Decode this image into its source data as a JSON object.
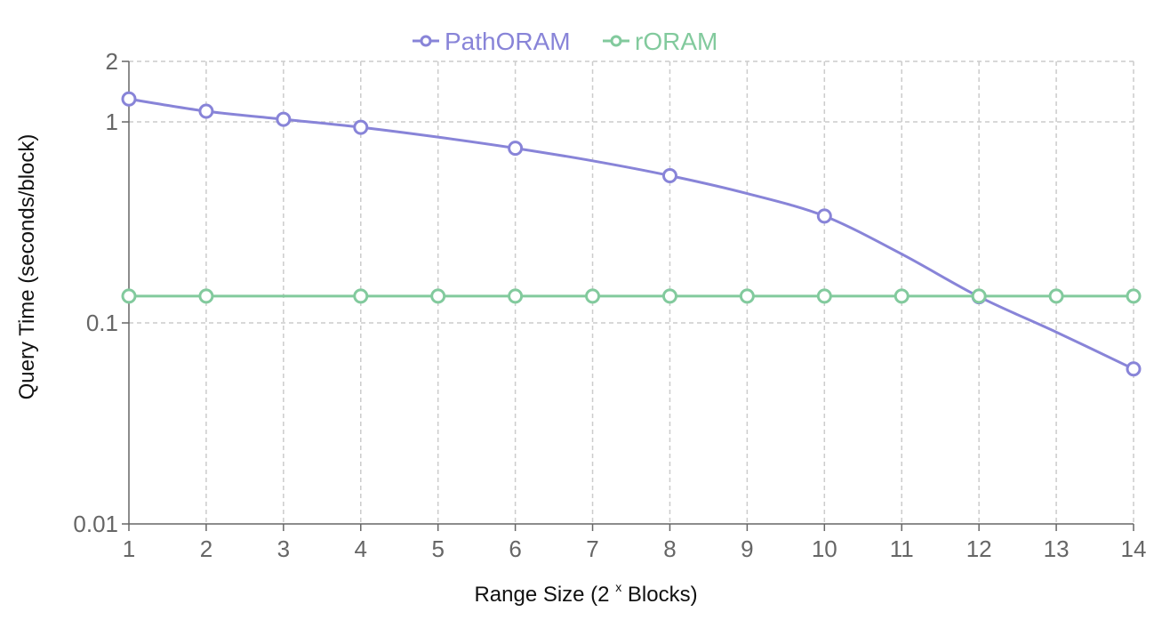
{
  "chart_data": {
    "type": "line",
    "xlabel_prefix": "Range Size (2",
    "xlabel_sup": "x",
    "xlabel_suffix": " Blocks)",
    "ylabel": "Query Time (seconds/block)",
    "y_scale": "log",
    "x": [
      1,
      2,
      3,
      4,
      5,
      6,
      7,
      8,
      9,
      10,
      11,
      12,
      13,
      14
    ],
    "xlim": [
      1,
      14
    ],
    "ylim": [
      0.01,
      2
    ],
    "y_ticks": [
      0.01,
      0.1,
      1,
      2
    ],
    "y_tick_labels": [
      "0.01",
      "0.1",
      "1",
      "2"
    ],
    "grid": true,
    "legend_position": "top-center",
    "series": [
      {
        "name": "PathORAM",
        "color": "#8884d8",
        "values": [
          1.3,
          1.13,
          1.03,
          0.94,
          null,
          0.74,
          null,
          0.54,
          null,
          0.34,
          null,
          0.135,
          null,
          0.059
        ],
        "smooth_values": [
          1.3,
          1.13,
          1.03,
          0.94,
          0.84,
          0.74,
          0.64,
          0.54,
          0.44,
          0.34,
          0.22,
          0.135,
          0.09,
          0.059
        ]
      },
      {
        "name": "rORAM",
        "color": "#82ca9d",
        "values": [
          0.136,
          0.136,
          null,
          0.136,
          0.136,
          0.136,
          0.136,
          0.136,
          0.136,
          0.136,
          0.136,
          0.136,
          0.136,
          0.136
        ],
        "smooth_values": [
          0.136,
          0.136,
          0.136,
          0.136,
          0.136,
          0.136,
          0.136,
          0.136,
          0.136,
          0.136,
          0.136,
          0.136,
          0.136,
          0.136
        ]
      }
    ]
  }
}
